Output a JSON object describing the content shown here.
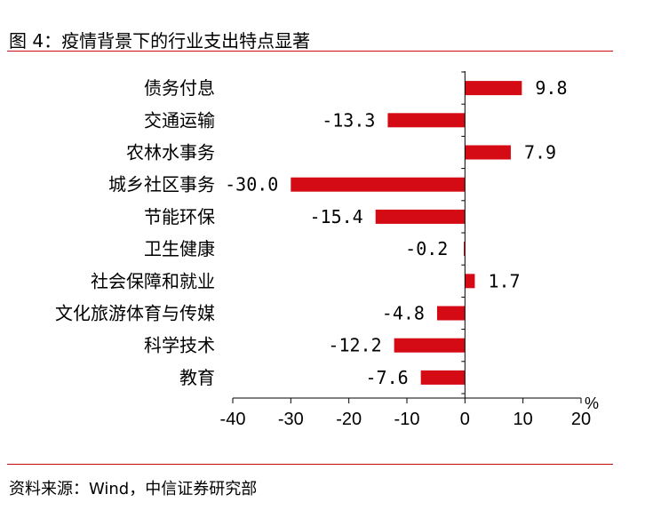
{
  "header": {
    "title": "图 4：疫情背景下的行业支出特点显著"
  },
  "footer": {
    "source_label": "资料来源：",
    "source_text": "Wind，中信证券研究部"
  },
  "colors": {
    "bar": "#d40a14",
    "rule": "#cc0a14"
  },
  "chart_data": {
    "type": "bar",
    "orientation": "horizontal",
    "title": "",
    "xlabel": "",
    "ylabel": "",
    "unit": "%",
    "categories": [
      "债务付息",
      "交通运输",
      "农林水事务",
      "城乡社区事务",
      "节能环保",
      "卫生健康",
      "社会保障和就业",
      "文化旅游体育与传媒",
      "科学技术",
      "教育"
    ],
    "values": [
      9.8,
      -13.3,
      7.9,
      -30.0,
      -15.4,
      -0.2,
      1.7,
      -4.8,
      -12.2,
      -7.6
    ],
    "value_labels": [
      "9.8",
      "-13.3",
      "7.9",
      "-30.0",
      "-15.4",
      "-0.2",
      "1.7",
      "-4.8",
      "-12.2",
      "-7.6"
    ],
    "xlim": [
      -40,
      20
    ],
    "xticks": [
      -40,
      -30,
      -20,
      -10,
      0,
      10,
      20
    ],
    "xtick_labels": [
      "-40",
      "-30",
      "-20",
      "-10",
      "0",
      "10",
      "20"
    ],
    "grid": false,
    "legend": "none"
  }
}
